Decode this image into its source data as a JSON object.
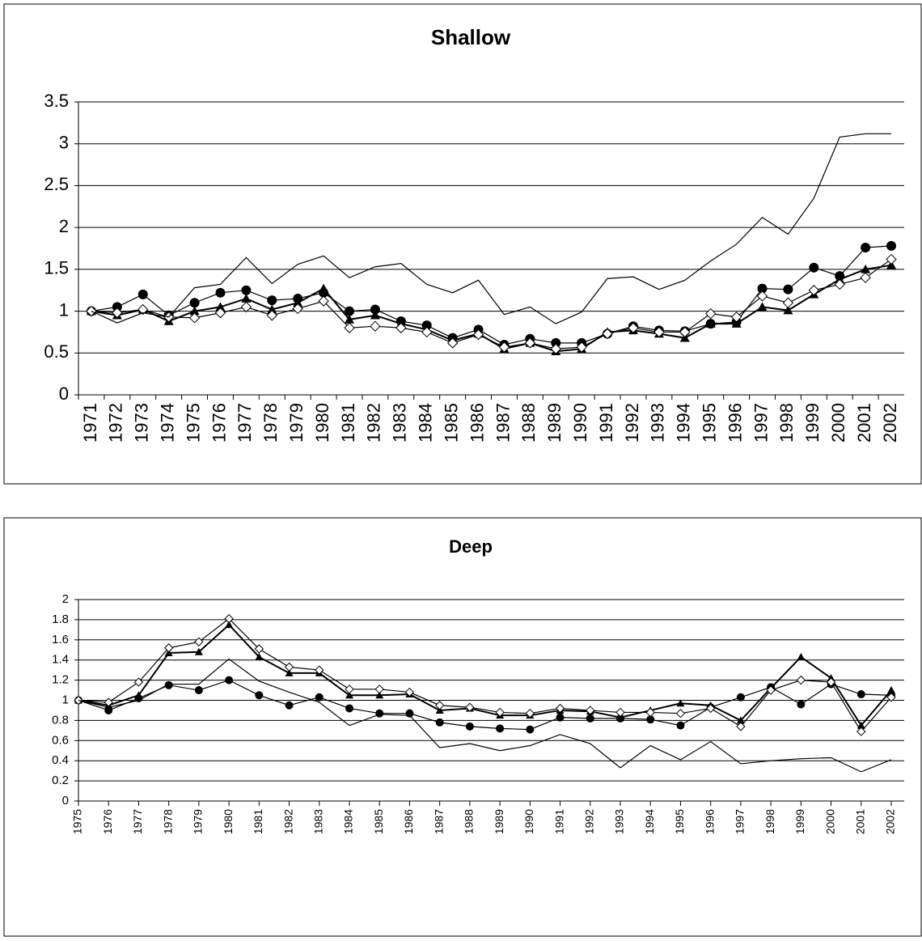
{
  "chart_data": [
    {
      "type": "line",
      "title": "Shallow",
      "categories": [
        "1971",
        "1972",
        "1973",
        "1974",
        "1975",
        "1976",
        "1977",
        "1978",
        "1979",
        "1980",
        "1981",
        "1982",
        "1983",
        "1984",
        "1985",
        "1986",
        "1987",
        "1988",
        "1989",
        "1990",
        "1991",
        "1992",
        "1993",
        "1994",
        "1995",
        "1996",
        "1997",
        "1998",
        "1999",
        "2000",
        "2001",
        "2002"
      ],
      "ylim": [
        0,
        3.5
      ],
      "yticks": [
        0,
        0.5,
        1,
        1.5,
        2,
        2.5,
        3,
        3.5
      ],
      "grid": true,
      "series": [
        {
          "color": "#000000",
          "marker": "circle",
          "values": [
            1.0,
            1.05,
            1.2,
            0.95,
            1.1,
            1.22,
            1.25,
            1.13,
            1.15,
            1.22,
            1.0,
            1.02,
            0.88,
            0.83,
            0.68,
            0.78,
            0.6,
            0.67,
            0.62,
            0.62,
            0.73,
            0.82,
            0.77,
            0.76,
            0.85,
            0.87,
            1.27,
            1.26,
            1.52,
            1.42,
            1.76,
            1.78
          ]
        },
        {
          "color": "#000000",
          "marker": "triangle",
          "values": [
            1.0,
            0.95,
            1.02,
            0.88,
            1.0,
            1.05,
            1.15,
            1.02,
            1.1,
            1.27,
            0.9,
            0.95,
            0.85,
            0.78,
            0.65,
            0.73,
            0.55,
            0.62,
            0.52,
            0.55,
            0.75,
            0.77,
            0.73,
            0.68,
            0.85,
            0.85,
            1.05,
            1.01,
            1.2,
            1.38,
            1.5,
            1.55
          ]
        },
        {
          "color": "#000000",
          "marker": "diamond",
          "values": [
            1.0,
            0.98,
            1.02,
            0.93,
            0.92,
            0.98,
            1.05,
            0.95,
            1.03,
            1.12,
            0.8,
            0.82,
            0.8,
            0.75,
            0.62,
            0.72,
            0.57,
            0.62,
            0.55,
            0.57,
            0.73,
            0.8,
            0.75,
            0.75,
            0.97,
            0.93,
            1.18,
            1.1,
            1.25,
            1.32,
            1.4,
            1.62
          ]
        },
        {
          "color": "#000000",
          "marker": "none",
          "values": [
            1.0,
            0.86,
            0.98,
            0.93,
            1.28,
            1.32,
            1.64,
            1.33,
            1.56,
            1.66,
            1.4,
            1.53,
            1.57,
            1.32,
            1.22,
            1.37,
            0.96,
            1.05,
            0.85,
            0.99,
            1.39,
            1.41,
            1.26,
            1.37,
            1.6,
            1.8,
            2.12,
            1.92,
            2.35,
            3.08,
            3.12,
            3.12
          ]
        }
      ]
    },
    {
      "type": "line",
      "title": "Deep",
      "categories": [
        "1975",
        "1976",
        "1977",
        "1978",
        "1979",
        "1980",
        "1981",
        "1982",
        "1983",
        "1984",
        "1985",
        "1986",
        "1987",
        "1988",
        "1989",
        "1990",
        "1991",
        "1992",
        "1993",
        "1994",
        "1995",
        "1996",
        "1997",
        "1998",
        "1999",
        "2000",
        "2001",
        "2002"
      ],
      "ylim": [
        0,
        2
      ],
      "yticks": [
        0,
        0.2,
        0.4,
        0.6,
        0.8,
        1,
        1.2,
        1.4,
        1.6,
        1.8,
        2
      ],
      "grid": true,
      "series": [
        {
          "color": "#000000",
          "marker": "circle",
          "values": [
            1.0,
            0.9,
            1.02,
            1.15,
            1.1,
            1.2,
            1.05,
            0.95,
            1.03,
            0.92,
            0.87,
            0.87,
            0.78,
            0.74,
            0.72,
            0.71,
            0.83,
            0.82,
            0.82,
            0.81,
            0.75,
            0.93,
            1.03,
            1.13,
            0.96,
            1.16,
            1.06,
            1.05
          ]
        },
        {
          "color": "#000000",
          "marker": "triangle",
          "values": [
            1.0,
            0.95,
            1.05,
            1.47,
            1.48,
            1.75,
            1.43,
            1.27,
            1.27,
            1.05,
            1.05,
            1.06,
            0.9,
            0.92,
            0.85,
            0.85,
            0.9,
            0.89,
            0.83,
            0.9,
            0.97,
            0.95,
            0.8,
            1.12,
            1.43,
            1.22,
            0.75,
            1.1
          ]
        },
        {
          "color": "#000000",
          "marker": "diamond",
          "values": [
            1.0,
            0.98,
            1.18,
            1.52,
            1.58,
            1.81,
            1.51,
            1.33,
            1.3,
            1.11,
            1.11,
            1.08,
            0.95,
            0.93,
            0.88,
            0.87,
            0.92,
            0.9,
            0.88,
            0.88,
            0.87,
            0.92,
            0.74,
            1.1,
            1.2,
            1.18,
            0.69,
            1.03
          ]
        },
        {
          "color": "#000000",
          "marker": "none",
          "values": [
            1.0,
            0.93,
            1.0,
            1.16,
            1.16,
            1.41,
            1.19,
            1.08,
            0.98,
            0.75,
            0.86,
            0.85,
            0.53,
            0.57,
            0.5,
            0.55,
            0.66,
            0.57,
            0.33,
            0.55,
            0.41,
            0.59,
            0.37,
            0.4,
            0.42,
            0.43,
            0.29,
            0.41
          ]
        }
      ]
    }
  ]
}
